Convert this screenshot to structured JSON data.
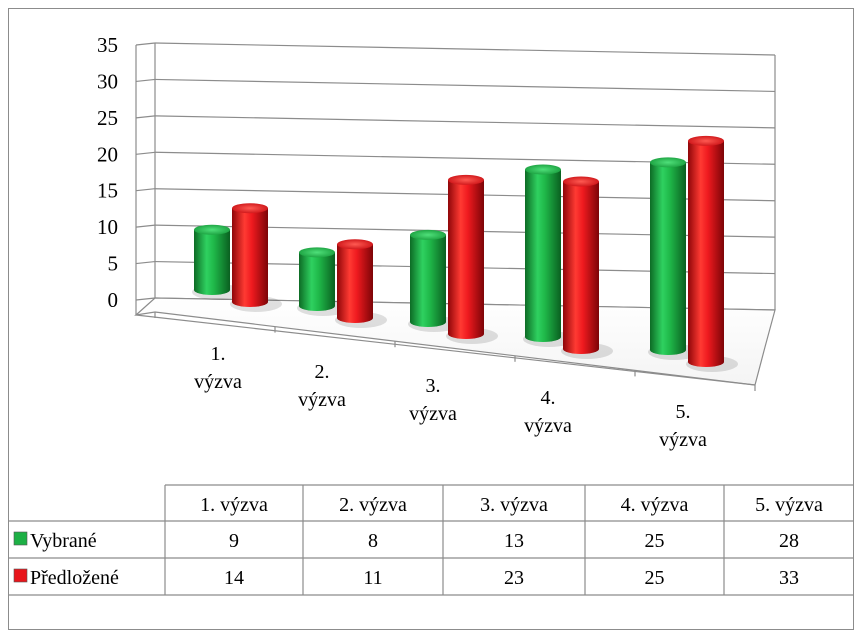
{
  "chart_data": {
    "type": "bar",
    "style": "3d-cylinder",
    "categories": [
      "1. výzva",
      "2. výzva",
      "3. výzva",
      "4. výzva",
      "5. výzva"
    ],
    "category_label_lines": [
      [
        "1.",
        "výzva"
      ],
      [
        "2.",
        "výzva"
      ],
      [
        "3.",
        "výzva"
      ],
      [
        "4.",
        "výzva"
      ],
      [
        "5.",
        "výzva"
      ]
    ],
    "series": [
      {
        "name": "Vybrané",
        "values": [
          9,
          8,
          13,
          25,
          28
        ],
        "color": "#1db045"
      },
      {
        "name": "Předložené",
        "values": [
          14,
          11,
          23,
          25,
          33
        ],
        "color": "#e8151b"
      }
    ],
    "ylim": [
      0,
      35
    ],
    "yticks": [
      "0",
      "5",
      "10",
      "15",
      "20",
      "25",
      "30",
      "35"
    ],
    "grid": true,
    "legend": "data-table"
  },
  "data_table": {
    "headers": [
      "1. výzva",
      "2. výzva",
      "3. výzva",
      "4. výzva",
      "5. výzva"
    ],
    "rows": [
      {
        "label": "Vybrané",
        "cells": [
          "9",
          "8",
          "13",
          "25",
          "28"
        ],
        "color": "#1db045"
      },
      {
        "label": "Předložené",
        "cells": [
          "14",
          "11",
          "23",
          "25",
          "33"
        ],
        "color": "#e8151b"
      }
    ]
  }
}
